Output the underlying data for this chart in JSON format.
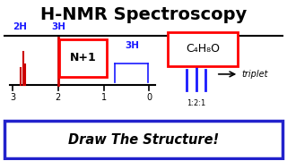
{
  "title": "H-NMR Spectroscopy",
  "title_color": "#000000",
  "bg_color": "#ffffff",
  "axis_line_color": "#000000",
  "spectrum_line_color": "#cc0000",
  "label_color": "#1a1aff",
  "label_2h": "2H",
  "label_3h_left": "3H",
  "label_3h_right": "3H",
  "nmr_rule_text": "N+1",
  "formula_text": "C₄H₈O",
  "triplet_label": "1:2:1",
  "bottom_text": "Draw The Structure!",
  "axis_ticks": [
    0,
    1,
    2,
    3
  ]
}
